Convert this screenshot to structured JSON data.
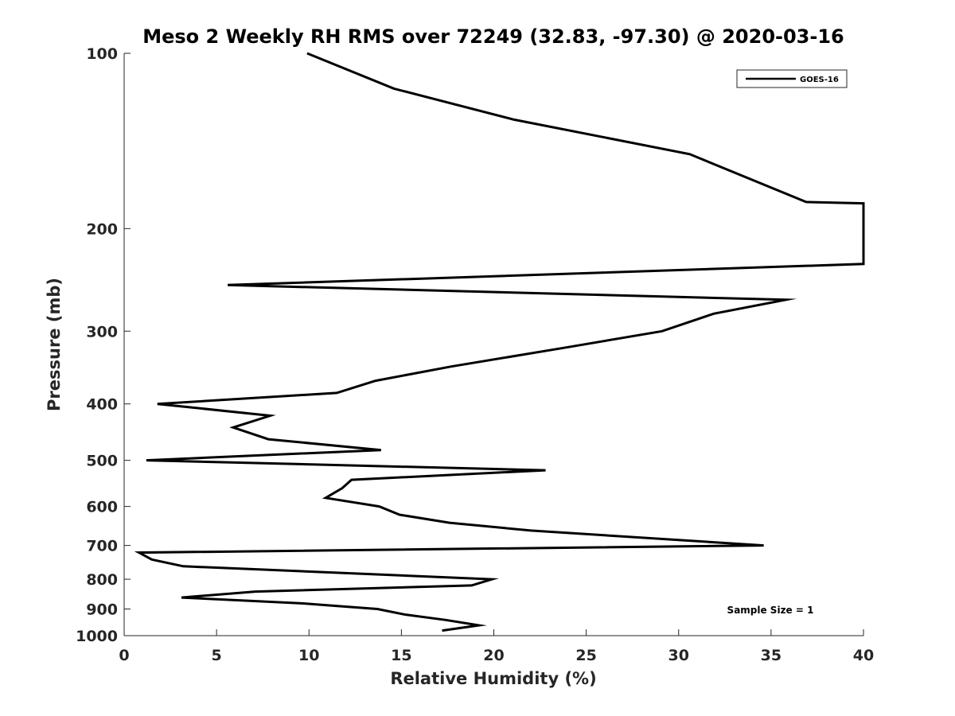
{
  "chart_data": {
    "type": "line",
    "title": "Meso 2 Weekly RH RMS over 72249 (32.83, -97.30) @ 2020-03-16",
    "xlabel": "Relative Humidity (%)",
    "ylabel": "Pressure (mb)",
    "xlim": [
      0,
      40
    ],
    "ylim": [
      100,
      1000
    ],
    "y_scale": "log",
    "y_reversed": true,
    "x_ticks": [
      "0",
      "5",
      "10",
      "15",
      "20",
      "25",
      "30",
      "35",
      "40"
    ],
    "y_ticks": [
      "100",
      "200",
      "300",
      "400",
      "500",
      "600",
      "700",
      "800",
      "900",
      "1000"
    ],
    "grid": false,
    "legend_position": "top-right",
    "annotation": "Sample Size = 1",
    "series": [
      {
        "name": "GOES-16",
        "color": "#000000",
        "x": [
          9.9,
          14.6,
          21.1,
          30.6,
          36.9,
          40.0,
          40.0,
          5.6,
          35.8,
          31.9,
          29.1,
          23.9,
          17.7,
          13.6,
          11.5,
          1.8,
          7.9,
          5.9,
          7.8,
          13.9,
          1.2,
          22.8,
          12.3,
          11.8,
          10.9,
          13.8,
          14.9,
          17.6,
          22.0,
          34.6,
          0.8,
          1.5,
          3.2,
          19.9,
          18.8,
          7.1,
          3.1,
          9.6,
          13.7,
          15.2,
          17.4,
          19.2,
          17.2
        ],
        "y": [
          100,
          115,
          130,
          149,
          180,
          181,
          230,
          250,
          265,
          280,
          300,
          320,
          345,
          365,
          383,
          400,
          419,
          439,
          460,
          480,
          500,
          520,
          540,
          558,
          580,
          600,
          620,
          640,
          660,
          700,
          720,
          740,
          760,
          800,
          820,
          840,
          860,
          880,
          900,
          920,
          940,
          960,
          980
        ]
      }
    ]
  }
}
